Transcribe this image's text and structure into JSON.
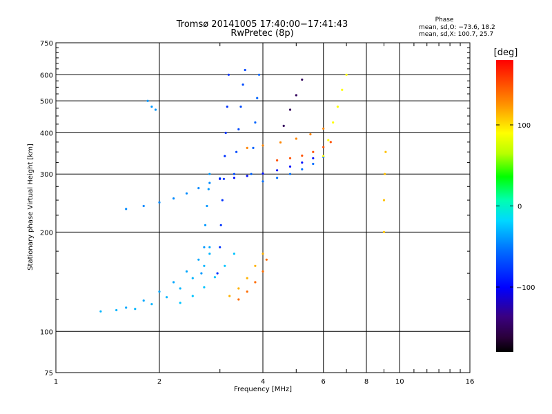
{
  "chart_data": {
    "type": "scatter",
    "title": "Tromsø 20141005 17:40:00−17:41:43",
    "subtitle": "RwPretec (8p)",
    "xlabel": "Frequency [MHz]",
    "ylabel": "Stationary phase Virtual Height [km]",
    "x_scale": "log",
    "y_scale": "log",
    "xlim": [
      1,
      16
    ],
    "ylim": [
      75,
      750
    ],
    "x_ticks": [
      1,
      2,
      4,
      6,
      8,
      10,
      16
    ],
    "y_ticks": [
      75,
      100,
      200,
      300,
      400,
      500,
      600,
      750
    ],
    "grid": true,
    "phase_box": {
      "heading": "Phase",
      "line_o": "mean, sd,O: −73.6, 18.2",
      "line_x": "mean, sd,X: 100.7, 25.7"
    },
    "colorbar": {
      "label": "[deg]",
      "range": [
        -180,
        180
      ],
      "ticks": [
        100,
        0,
        -100
      ]
    },
    "traces": [
      {
        "name": "",
        "phase_deg": -30,
        "points": [
          [
            1.35,
            115
          ],
          [
            1.5,
            116
          ],
          [
            1.7,
            117
          ],
          [
            1.9,
            121
          ],
          [
            2.1,
            127
          ],
          [
            2.3,
            135
          ],
          [
            2.5,
            145
          ],
          [
            2.7,
            158
          ],
          [
            2.8,
            172
          ]
        ]
      },
      {
        "name": "",
        "phase_deg": -35,
        "points": [
          [
            1.6,
            118
          ],
          [
            1.8,
            124
          ],
          [
            2.0,
            132
          ],
          [
            2.2,
            141
          ],
          [
            2.4,
            152
          ],
          [
            2.6,
            165
          ],
          [
            2.8,
            180
          ]
        ]
      },
      {
        "name": "",
        "phase_deg": -25,
        "points": [
          [
            2.3,
            122
          ],
          [
            2.5,
            128
          ],
          [
            2.7,
            136
          ],
          [
            2.9,
            146
          ],
          [
            3.1,
            158
          ],
          [
            3.3,
            172
          ]
        ]
      },
      {
        "name": "",
        "phase_deg": -45,
        "points": [
          [
            1.6,
            235
          ],
          [
            1.8,
            240
          ],
          [
            2.0,
            246
          ],
          [
            2.2,
            253
          ],
          [
            2.4,
            262
          ],
          [
            2.6,
            272
          ],
          [
            2.8,
            282
          ],
          [
            3.0,
            291
          ]
        ]
      },
      {
        "name": "",
        "phase_deg": -40,
        "points": [
          [
            2.65,
            150
          ],
          [
            2.7,
            180
          ],
          [
            2.72,
            210
          ],
          [
            2.75,
            240
          ],
          [
            2.78,
            270
          ],
          [
            2.8,
            300
          ]
        ]
      },
      {
        "name": "",
        "phase_deg": -80,
        "points": [
          [
            2.95,
            150
          ],
          [
            3.0,
            180
          ],
          [
            3.02,
            210
          ],
          [
            3.05,
            250
          ],
          [
            3.08,
            290
          ],
          [
            3.1,
            340
          ],
          [
            3.12,
            400
          ],
          [
            3.15,
            480
          ],
          [
            3.18,
            600
          ]
        ]
      },
      {
        "name": "",
        "phase_deg": -95,
        "points": [
          [
            3.0,
            290
          ],
          [
            3.3,
            292
          ],
          [
            3.6,
            296
          ],
          [
            4.0,
            301
          ],
          [
            4.4,
            308
          ],
          [
            4.8,
            316
          ],
          [
            5.2,
            325
          ],
          [
            5.6,
            335
          ]
        ]
      },
      {
        "name": "",
        "phase_deg": -70,
        "points": [
          [
            3.3,
            300
          ],
          [
            3.35,
            350
          ],
          [
            3.4,
            410
          ],
          [
            3.45,
            480
          ],
          [
            3.5,
            560
          ],
          [
            3.55,
            620
          ]
        ]
      },
      {
        "name": "",
        "phase_deg": -60,
        "points": [
          [
            3.7,
            300
          ],
          [
            3.75,
            360
          ],
          [
            3.8,
            430
          ],
          [
            3.85,
            510
          ],
          [
            3.9,
            600
          ]
        ]
      },
      {
        "name": "",
        "phase_deg": -55,
        "points": [
          [
            4.0,
            285
          ],
          [
            4.4,
            292
          ],
          [
            4.8,
            300
          ],
          [
            5.2,
            310
          ],
          [
            5.6,
            322
          ],
          [
            6.0,
            338
          ]
        ]
      },
      {
        "name": "",
        "phase_deg": 130,
        "points": [
          [
            3.6,
            360
          ],
          [
            4.0,
            366
          ],
          [
            4.5,
            374
          ],
          [
            5.0,
            384
          ],
          [
            5.5,
            396
          ],
          [
            6.0,
            412
          ]
        ]
      },
      {
        "name": "",
        "phase_deg": 150,
        "points": [
          [
            4.4,
            330
          ],
          [
            4.8,
            335
          ],
          [
            5.2,
            341
          ],
          [
            5.6,
            350
          ],
          [
            6.0,
            362
          ],
          [
            6.3,
            375
          ]
        ]
      },
      {
        "name": "",
        "phase_deg": 115,
        "points": [
          [
            3.2,
            128
          ],
          [
            3.4,
            135
          ],
          [
            3.6,
            145
          ],
          [
            3.8,
            158
          ],
          [
            4.0,
            172
          ]
        ]
      },
      {
        "name": "",
        "phase_deg": 140,
        "points": [
          [
            3.4,
            125
          ],
          [
            3.6,
            132
          ],
          [
            3.8,
            141
          ],
          [
            4.0,
            152
          ],
          [
            4.1,
            165
          ]
        ]
      },
      {
        "name": "",
        "phase_deg": 90,
        "points": [
          [
            6.0,
            340
          ],
          [
            6.2,
            380
          ],
          [
            6.4,
            430
          ],
          [
            6.6,
            480
          ],
          [
            6.8,
            540
          ],
          [
            7.0,
            600
          ]
        ]
      },
      {
        "name": "",
        "phase_deg": -40,
        "points": [
          [
            1.85,
            500
          ],
          [
            1.9,
            480
          ],
          [
            1.95,
            470
          ]
        ]
      },
      {
        "name": "",
        "phase_deg": -150,
        "points": [
          [
            4.6,
            420
          ],
          [
            4.8,
            470
          ],
          [
            5.0,
            520
          ],
          [
            5.2,
            580
          ]
        ]
      },
      {
        "name": "",
        "phase_deg": 110,
        "points": [
          [
            9.0,
            200
          ],
          [
            9.0,
            250
          ],
          [
            9.05,
            300
          ],
          [
            9.1,
            350
          ]
        ]
      }
    ]
  }
}
